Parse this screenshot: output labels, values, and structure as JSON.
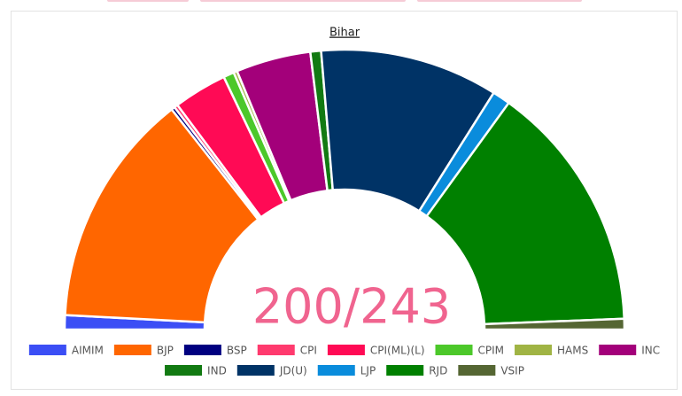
{
  "chart_data": {
    "type": "parliament",
    "title": "Bihar",
    "center_label": "200/243",
    "series": [
      {
        "name": "AIMIM",
        "color": "#3b4ef5",
        "values": [
          4
        ]
      },
      {
        "name": "BJP",
        "color": "#ff6600",
        "values": [
          66
        ]
      },
      {
        "name": "BSP",
        "color": "#000080",
        "values": [
          1
        ]
      },
      {
        "name": "CPI",
        "color": "#ff3a6e",
        "values": [
          1
        ]
      },
      {
        "name": "CPI(ML)(L)",
        "color": "#ff0a55",
        "values": [
          15
        ]
      },
      {
        "name": "CPIM",
        "color": "#4cc82a",
        "values": [
          3
        ]
      },
      {
        "name": "HAMS",
        "color": "#a0b444",
        "values": [
          1
        ]
      },
      {
        "name": "INC",
        "color": "#a3007a",
        "values": [
          21
        ]
      },
      {
        "name": "IND",
        "color": "#127a12",
        "values": [
          3
        ]
      },
      {
        "name": "JD(U)",
        "color": "#003366",
        "values": [
          50
        ]
      },
      {
        "name": "LJP",
        "color": "#0a8cdc",
        "values": [
          5
        ]
      },
      {
        "name": "RJD",
        "color": "#008000",
        "values": [
          70
        ]
      },
      {
        "name": "VSIP",
        "color": "#556633",
        "values": [
          3
        ]
      }
    ]
  }
}
